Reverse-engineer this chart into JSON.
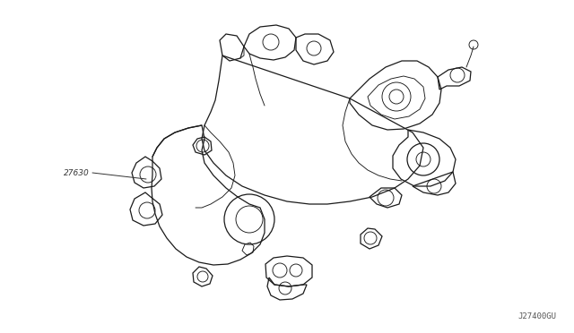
{
  "background_color": "#ffffff",
  "line_color": "#1a1a1a",
  "label_color": "#333333",
  "part_number": "27630",
  "diagram_code": "J27400GU",
  "figsize": [
    6.4,
    3.72
  ],
  "dpi": 100
}
